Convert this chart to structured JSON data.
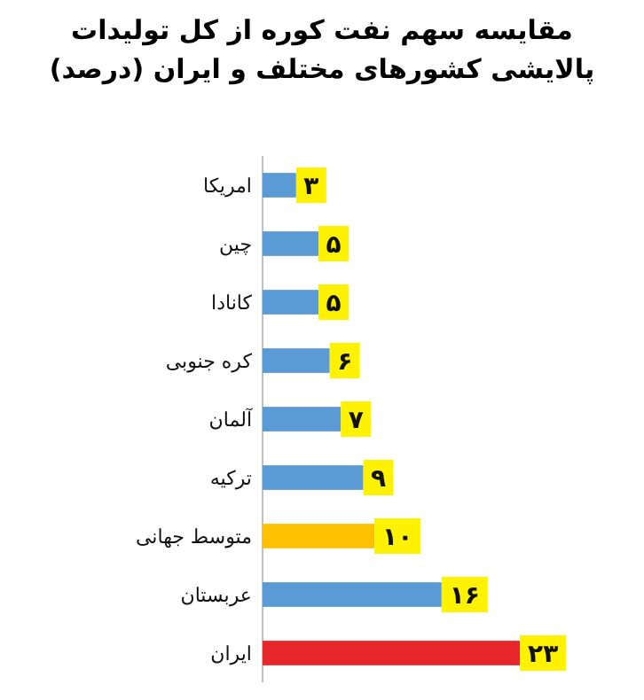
{
  "chart_data": {
    "type": "bar",
    "orientation": "horizontal",
    "title": "مقایسه سهم نفت کوره از کل تولیدات پالایشی کشورهای مختلف و ایران (درصد)",
    "categories": [
      "امریکا",
      "چین",
      "کانادا",
      "کره جنوبی",
      "آلمان",
      "ترکیه",
      "متوسط جهانی",
      "عربستان",
      "ایران"
    ],
    "values": [
      3,
      5,
      5,
      6,
      7,
      9,
      10,
      16,
      23
    ],
    "value_labels": [
      "۳",
      "۵",
      "۵",
      "۶",
      "۷",
      "۹",
      "۱۰",
      "۱۶",
      "۲۳"
    ],
    "colors": [
      "#5b9bd5",
      "#5b9bd5",
      "#5b9bd5",
      "#5b9bd5",
      "#5b9bd5",
      "#5b9bd5",
      "#ffc000",
      "#5b9bd5",
      "#e8272a"
    ]
  }
}
